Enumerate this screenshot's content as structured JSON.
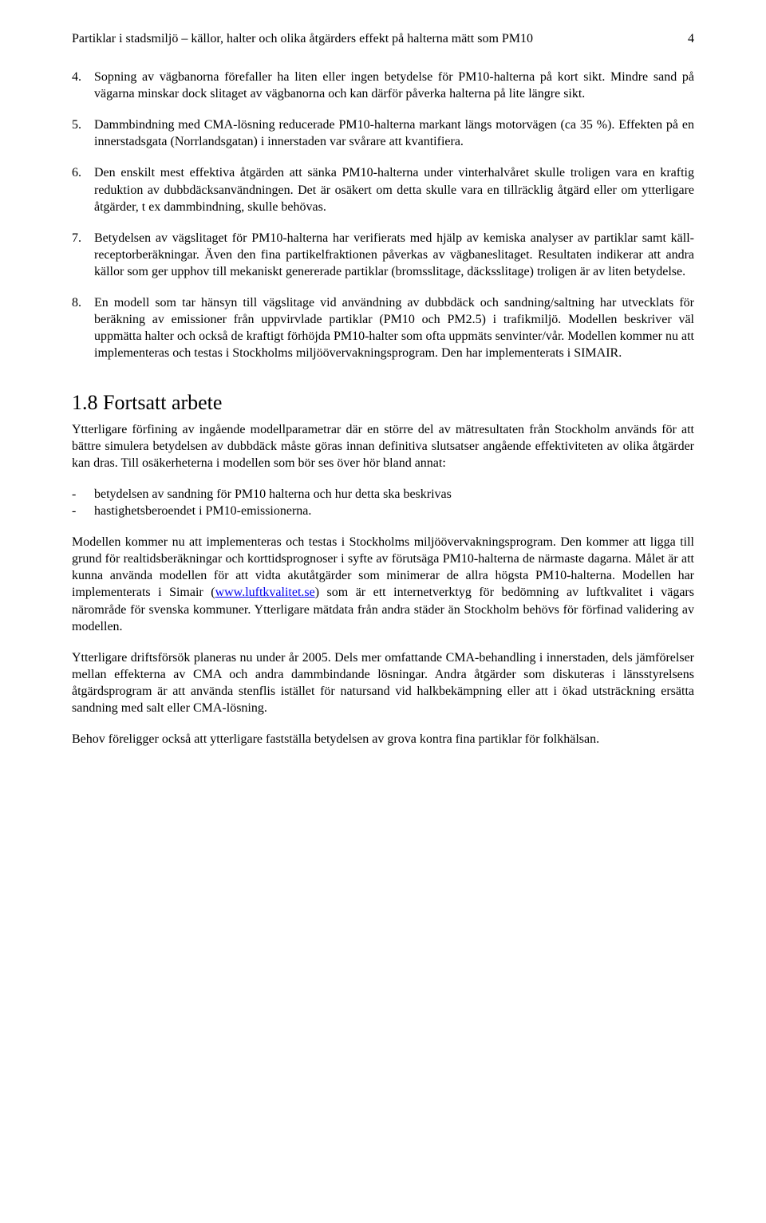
{
  "header": {
    "title": "Partiklar i stadsmiljö – källor, halter och olika åtgärders effekt på halterna mätt som PM10",
    "page_number": "4"
  },
  "list_items": [
    {
      "num": "4.",
      "text": "Sopning av vägbanorna förefaller ha liten eller ingen betydelse för PM10-halterna på kort sikt. Mindre sand på vägarna minskar dock slitaget av vägbanorna och kan därför påverka halterna på lite längre sikt."
    },
    {
      "num": "5.",
      "text": "Dammbindning med CMA-lösning reducerade PM10-halterna markant längs motorvägen (ca 35 %). Effekten på en innerstadsgata (Norrlandsgatan) i innerstaden var svårare att kvantifiera."
    },
    {
      "num": "6.",
      "text": "Den enskilt mest effektiva åtgärden att sänka PM10-halterna under vinterhalvåret skulle troligen vara en kraftig reduktion av dubbdäcksanvändningen. Det är osäkert om detta skulle vara en tillräcklig åtgärd eller om ytterligare åtgärder, t ex dammbindning, skulle behövas."
    },
    {
      "num": "7.",
      "text": "Betydelsen av vägslitaget för PM10-halterna har verifierats med hjälp av kemiska analyser av partiklar samt käll- receptorberäkningar. Även den fina partikelfraktionen påverkas av vägbaneslitaget. Resultaten indikerar att andra källor som ger upphov till mekaniskt genererade partiklar (bromsslitage, däcksslitage) troligen är av liten betydelse."
    },
    {
      "num": "8.",
      "text": "En modell som tar hänsyn till vägslitage vid användning av dubbdäck och sandning/saltning har utvecklats för beräkning av emissioner från uppvirvlade partiklar (PM10 och PM2.5) i trafikmiljö. Modellen beskriver väl uppmätta halter och också de kraftigt förhöjda PM10-halter som ofta uppmäts senvinter/vår. Modellen kommer nu att implementeras och testas i Stockholms miljöövervakningsprogram. Den har implementerats i SIMAIR."
    }
  ],
  "section": {
    "heading": "1.8  Fortsatt arbete",
    "intro": "Ytterligare förfining av ingående modellparametrar där en större del av mätresultaten från Stockholm används för att bättre simulera betydelsen av dubbdäck måste göras innan definitiva slutsatser angående effektiviteten av olika åtgärder kan dras. Till osäkerheterna i modellen som bör ses över hör bland annat:",
    "bullets": [
      "betydelsen av sandning för PM10 halterna och hur detta ska beskrivas",
      "hastighetsberoendet i PM10-emissionerna."
    ],
    "para_link_pre": "Modellen kommer nu att implementeras och testas i Stockholms miljöövervakningsprogram. Den kommer att ligga till grund för realtidsberäkningar och korttidsprognoser i syfte av förutsäga PM10-halterna de närmaste dagarna. Målet är att kunna använda modellen för att vidta akutåtgärder som minimerar de allra högsta PM10-halterna. Modellen har implementerats i Simair (",
    "link_text": "www.luftkvalitet.se",
    "link_href": "http://www.luftkvalitet.se",
    "para_link_post": ") som är ett internetverktyg för bedömning av luftkvalitet i vägars närområde för svenska kommuner. Ytterligare mätdata från andra städer än Stockholm behövs för förfinad validering av modellen.",
    "para3": "Ytterligare driftsförsök planeras nu under år 2005. Dels mer omfattande CMA-behandling i innerstaden, dels jämförelser mellan effekterna av CMA och andra dammbindande lösningar. Andra åtgärder som diskuteras i länsstyrelsens åtgärdsprogram är att använda stenflis istället för natursand vid halkbekämpning eller att i ökad utsträckning ersätta sandning med salt eller CMA-lösning.",
    "para4": "Behov föreligger också att ytterligare fastställa betydelsen av grova kontra fina partiklar för folkhälsan."
  }
}
